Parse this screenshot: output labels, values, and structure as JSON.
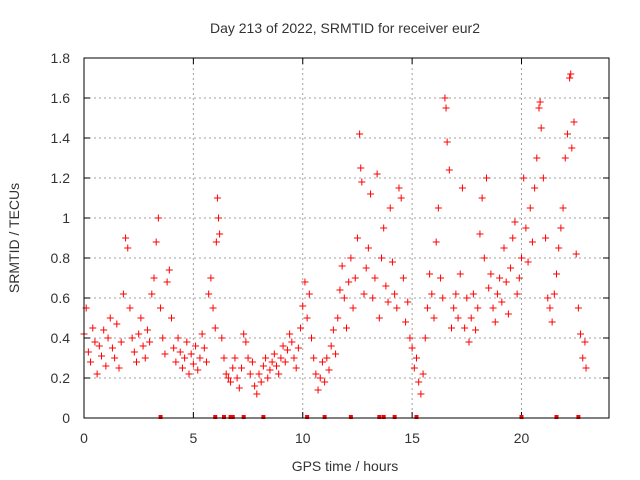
{
  "chart_data": {
    "type": "scatter",
    "title": "Day 213 of 2022, SRMTID for receiver eur2",
    "xlabel": "GPS time / hours",
    "ylabel": "SRMTID / TECUs",
    "xlim": [
      0,
      24
    ],
    "ylim": [
      0,
      1.8
    ],
    "xticks": [
      0,
      5,
      10,
      15,
      20
    ],
    "xtick_labels": [
      "0",
      "5",
      "10",
      "15",
      "20"
    ],
    "yticks": [
      0,
      0.2,
      0.4,
      0.6,
      0.8,
      1,
      1.2,
      1.4,
      1.6,
      1.8
    ],
    "ytick_labels": [
      "0",
      "0.2",
      "0.4",
      "0.6",
      "0.8",
      "1",
      "1.2",
      "1.4",
      "1.6",
      "1.8"
    ],
    "grid": true,
    "marker": "+",
    "color": "#ff0000",
    "series": [
      {
        "name": "SRMTID",
        "points": [
          [
            0.0,
            0.42
          ],
          [
            0.1,
            0.55
          ],
          [
            0.2,
            0.33
          ],
          [
            0.3,
            0.28
          ],
          [
            0.4,
            0.45
          ],
          [
            0.5,
            0.38
          ],
          [
            0.6,
            0.22
          ],
          [
            0.7,
            0.36
          ],
          [
            0.8,
            0.31
          ],
          [
            0.9,
            0.44
          ],
          [
            1.0,
            0.26
          ],
          [
            1.1,
            0.4
          ],
          [
            1.2,
            0.5
          ],
          [
            1.3,
            0.35
          ],
          [
            1.4,
            0.3
          ],
          [
            1.5,
            0.47
          ],
          [
            1.6,
            0.25
          ],
          [
            1.7,
            0.38
          ],
          [
            1.8,
            0.62
          ],
          [
            1.9,
            0.9
          ],
          [
            2.0,
            0.85
          ],
          [
            2.1,
            0.55
          ],
          [
            2.2,
            0.4
          ],
          [
            2.3,
            0.33
          ],
          [
            2.4,
            0.28
          ],
          [
            2.5,
            0.42
          ],
          [
            2.6,
            0.5
          ],
          [
            2.7,
            0.36
          ],
          [
            2.8,
            0.3
          ],
          [
            2.9,
            0.44
          ],
          [
            3.0,
            0.38
          ],
          [
            3.1,
            0.62
          ],
          [
            3.2,
            0.7
          ],
          [
            3.3,
            0.88
          ],
          [
            3.4,
            1.0
          ],
          [
            3.5,
            0.55
          ],
          [
            3.6,
            0.4
          ],
          [
            3.7,
            0.32
          ],
          [
            3.8,
            0.68
          ],
          [
            3.9,
            0.74
          ],
          [
            4.0,
            0.5
          ],
          [
            4.1,
            0.35
          ],
          [
            4.2,
            0.28
          ],
          [
            4.3,
            0.4
          ],
          [
            4.4,
            0.33
          ],
          [
            4.5,
            0.25
          ],
          [
            4.6,
            0.3
          ],
          [
            4.7,
            0.38
          ],
          [
            4.8,
            0.22
          ],
          [
            4.9,
            0.32
          ],
          [
            5.0,
            0.27
          ],
          [
            5.1,
            0.36
          ],
          [
            5.2,
            0.24
          ],
          [
            5.3,
            0.3
          ],
          [
            5.4,
            0.42
          ],
          [
            5.5,
            0.35
          ],
          [
            5.6,
            0.28
          ],
          [
            5.7,
            0.62
          ],
          [
            5.8,
            0.7
          ],
          [
            5.9,
            0.55
          ],
          [
            6.0,
            0.45
          ],
          [
            6.05,
            0.88
          ],
          [
            6.1,
            1.1
          ],
          [
            6.15,
            1.0
          ],
          [
            6.2,
            0.92
          ],
          [
            6.3,
            0.4
          ],
          [
            6.4,
            0.3
          ],
          [
            6.5,
            0.22
          ],
          [
            6.6,
            0.2
          ],
          [
            6.7,
            0.18
          ],
          [
            6.8,
            0.25
          ],
          [
            6.9,
            0.3
          ],
          [
            7.0,
            0.2
          ],
          [
            7.1,
            0.15
          ],
          [
            7.2,
            0.25
          ],
          [
            7.3,
            0.42
          ],
          [
            7.4,
            0.38
          ],
          [
            7.5,
            0.3
          ],
          [
            7.6,
            0.22
          ],
          [
            7.7,
            0.28
          ],
          [
            7.8,
            0.16
          ],
          [
            7.9,
            0.12
          ],
          [
            8.0,
            0.22
          ],
          [
            8.1,
            0.18
          ],
          [
            8.2,
            0.26
          ],
          [
            8.3,
            0.3
          ],
          [
            8.4,
            0.2
          ],
          [
            8.5,
            0.24
          ],
          [
            8.6,
            0.28
          ],
          [
            8.7,
            0.32
          ],
          [
            8.8,
            0.26
          ],
          [
            8.9,
            0.22
          ],
          [
            9.0,
            0.3
          ],
          [
            9.1,
            0.36
          ],
          [
            9.2,
            0.28
          ],
          [
            9.3,
            0.34
          ],
          [
            9.4,
            0.42
          ],
          [
            9.5,
            0.38
          ],
          [
            9.6,
            0.3
          ],
          [
            9.7,
            0.25
          ],
          [
            9.8,
            0.35
          ],
          [
            9.9,
            0.45
          ],
          [
            10.0,
            0.56
          ],
          [
            10.1,
            0.68
          ],
          [
            10.2,
            0.5
          ],
          [
            10.3,
            0.62
          ],
          [
            10.4,
            0.4
          ],
          [
            10.5,
            0.3
          ],
          [
            10.6,
            0.22
          ],
          [
            10.7,
            0.14
          ],
          [
            10.8,
            0.2
          ],
          [
            10.9,
            0.28
          ],
          [
            11.0,
            0.18
          ],
          [
            11.1,
            0.3
          ],
          [
            11.2,
            0.24
          ],
          [
            11.3,
            0.36
          ],
          [
            11.4,
            0.44
          ],
          [
            11.5,
            0.32
          ],
          [
            11.6,
            0.5
          ],
          [
            11.7,
            0.64
          ],
          [
            11.8,
            0.76
          ],
          [
            11.9,
            0.6
          ],
          [
            12.0,
            0.45
          ],
          [
            12.1,
            0.68
          ],
          [
            12.2,
            0.8
          ],
          [
            12.3,
            0.55
          ],
          [
            12.4,
            0.7
          ],
          [
            12.5,
            0.9
          ],
          [
            12.6,
            1.42
          ],
          [
            12.65,
            1.25
          ],
          [
            12.7,
            1.18
          ],
          [
            12.8,
            0.62
          ],
          [
            12.9,
            0.75
          ],
          [
            13.0,
            0.85
          ],
          [
            13.1,
            1.12
          ],
          [
            13.2,
            0.6
          ],
          [
            13.3,
            0.7
          ],
          [
            13.4,
            1.22
          ],
          [
            13.5,
            0.5
          ],
          [
            13.6,
            0.8
          ],
          [
            13.7,
            0.95
          ],
          [
            13.8,
            0.66
          ],
          [
            13.9,
            0.58
          ],
          [
            14.0,
            1.05
          ],
          [
            14.1,
            0.78
          ],
          [
            14.2,
            0.62
          ],
          [
            14.3,
            0.55
          ],
          [
            14.4,
            1.15
          ],
          [
            14.5,
            1.1
          ],
          [
            14.6,
            0.7
          ],
          [
            14.7,
            0.48
          ],
          [
            14.8,
            0.58
          ],
          [
            14.9,
            0.4
          ],
          [
            15.0,
            0.35
          ],
          [
            15.1,
            0.25
          ],
          [
            15.2,
            0.3
          ],
          [
            15.3,
            0.18
          ],
          [
            15.4,
            0.12
          ],
          [
            15.5,
            0.22
          ],
          [
            15.6,
            0.4
          ],
          [
            15.7,
            0.55
          ],
          [
            15.8,
            0.72
          ],
          [
            15.9,
            0.62
          ],
          [
            16.0,
            0.5
          ],
          [
            16.1,
            0.88
          ],
          [
            16.2,
            1.05
          ],
          [
            16.3,
            0.7
          ],
          [
            16.4,
            0.6
          ],
          [
            16.5,
            1.6
          ],
          [
            16.55,
            1.55
          ],
          [
            16.6,
            1.38
          ],
          [
            16.7,
            1.24
          ],
          [
            16.8,
            0.45
          ],
          [
            16.9,
            0.55
          ],
          [
            17.0,
            0.62
          ],
          [
            17.1,
            0.5
          ],
          [
            17.2,
            0.72
          ],
          [
            17.3,
            1.15
          ],
          [
            17.4,
            0.45
          ],
          [
            17.5,
            0.6
          ],
          [
            17.6,
            0.38
          ],
          [
            17.7,
            0.5
          ],
          [
            17.8,
            0.62
          ],
          [
            17.9,
            0.44
          ],
          [
            18.0,
            0.55
          ],
          [
            18.1,
            0.92
          ],
          [
            18.2,
            1.1
          ],
          [
            18.3,
            0.8
          ],
          [
            18.4,
            1.2
          ],
          [
            18.5,
            0.65
          ],
          [
            18.6,
            0.72
          ],
          [
            18.7,
            0.55
          ],
          [
            18.8,
            0.48
          ],
          [
            18.9,
            0.62
          ],
          [
            19.0,
            0.7
          ],
          [
            19.1,
            0.58
          ],
          [
            19.2,
            0.85
          ],
          [
            19.3,
            0.68
          ],
          [
            19.4,
            0.52
          ],
          [
            19.5,
            0.75
          ],
          [
            19.6,
            0.9
          ],
          [
            19.7,
            0.98
          ],
          [
            19.8,
            0.62
          ],
          [
            19.9,
            0.7
          ],
          [
            20.0,
            0.8
          ],
          [
            20.1,
            1.2
          ],
          [
            20.2,
            0.95
          ],
          [
            20.3,
            0.78
          ],
          [
            20.4,
            1.05
          ],
          [
            20.5,
            0.88
          ],
          [
            20.6,
            1.15
          ],
          [
            20.7,
            1.3
          ],
          [
            20.8,
            1.55
          ],
          [
            20.85,
            1.58
          ],
          [
            20.9,
            1.45
          ],
          [
            21.0,
            1.2
          ],
          [
            21.1,
            0.9
          ],
          [
            21.2,
            0.6
          ],
          [
            21.3,
            0.55
          ],
          [
            21.4,
            0.48
          ],
          [
            21.5,
            0.62
          ],
          [
            21.6,
            0.72
          ],
          [
            21.7,
            0.85
          ],
          [
            21.8,
            0.95
          ],
          [
            21.9,
            1.05
          ],
          [
            22.0,
            1.3
          ],
          [
            22.1,
            1.42
          ],
          [
            22.2,
            1.7
          ],
          [
            22.25,
            1.72
          ],
          [
            22.3,
            1.35
          ],
          [
            22.4,
            1.48
          ],
          [
            22.5,
            0.82
          ],
          [
            22.6,
            0.55
          ],
          [
            22.7,
            0.42
          ],
          [
            22.8,
            0.3
          ],
          [
            22.9,
            0.38
          ],
          [
            22.95,
            0.25
          ]
        ]
      }
    ],
    "zero_points": [
      3.5,
      6.0,
      6.4,
      6.7,
      6.8,
      7.3,
      8.2,
      10.2,
      11.0,
      12.2,
      13.5,
      13.7,
      14.2,
      15.2,
      20.0,
      21.6,
      22.6
    ]
  }
}
